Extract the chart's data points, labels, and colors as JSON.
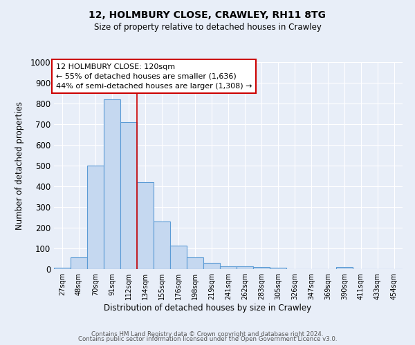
{
  "title1": "12, HOLMBURY CLOSE, CRAWLEY, RH11 8TG",
  "title2": "Size of property relative to detached houses in Crawley",
  "xlabel": "Distribution of detached houses by size in Crawley",
  "ylabel": "Number of detached properties",
  "bar_labels": [
    "27sqm",
    "48sqm",
    "70sqm",
    "91sqm",
    "112sqm",
    "134sqm",
    "155sqm",
    "176sqm",
    "198sqm",
    "219sqm",
    "241sqm",
    "262sqm",
    "283sqm",
    "305sqm",
    "326sqm",
    "347sqm",
    "369sqm",
    "390sqm",
    "411sqm",
    "433sqm",
    "454sqm"
  ],
  "bar_values": [
    8,
    58,
    500,
    820,
    710,
    420,
    230,
    115,
    57,
    30,
    15,
    13,
    10,
    6,
    0,
    0,
    0,
    10,
    0,
    0,
    0
  ],
  "bar_color": "#c5d8f0",
  "bar_edge_color": "#5b9bd5",
  "background_color": "#e8eef8",
  "grid_color": "#ffffff",
  "ylim": [
    0,
    1000
  ],
  "yticks": [
    0,
    100,
    200,
    300,
    400,
    500,
    600,
    700,
    800,
    900,
    1000
  ],
  "red_line_x": 4.5,
  "annotation_title": "12 HOLMBURY CLOSE: 120sqm",
  "annotation_line1": "← 55% of detached houses are smaller (1,636)",
  "annotation_line2": "44% of semi-detached houses are larger (1,308) →",
  "annotation_box_color": "#ffffff",
  "annotation_box_edge": "#cc0000",
  "footer1": "Contains HM Land Registry data © Crown copyright and database right 2024.",
  "footer2": "Contains public sector information licensed under the Open Government Licence v3.0."
}
